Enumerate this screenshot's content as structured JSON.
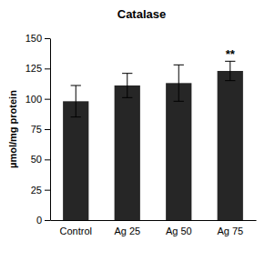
{
  "chart_data": {
    "type": "bar",
    "title": "Catalase",
    "y_label": "µmol/mg protein",
    "categories": [
      "Control",
      "Ag 25",
      "Ag 50",
      "Ag 75"
    ],
    "values": [
      98,
      111,
      113,
      123
    ],
    "errors": [
      13,
      10,
      15,
      8
    ],
    "color": "#262626",
    "ylim": [
      0,
      150
    ],
    "yticks": [
      0,
      25,
      50,
      75,
      100,
      125,
      150
    ],
    "grid": false,
    "annotations": [
      {
        "text": "**",
        "category": "Ag 75"
      }
    ]
  }
}
